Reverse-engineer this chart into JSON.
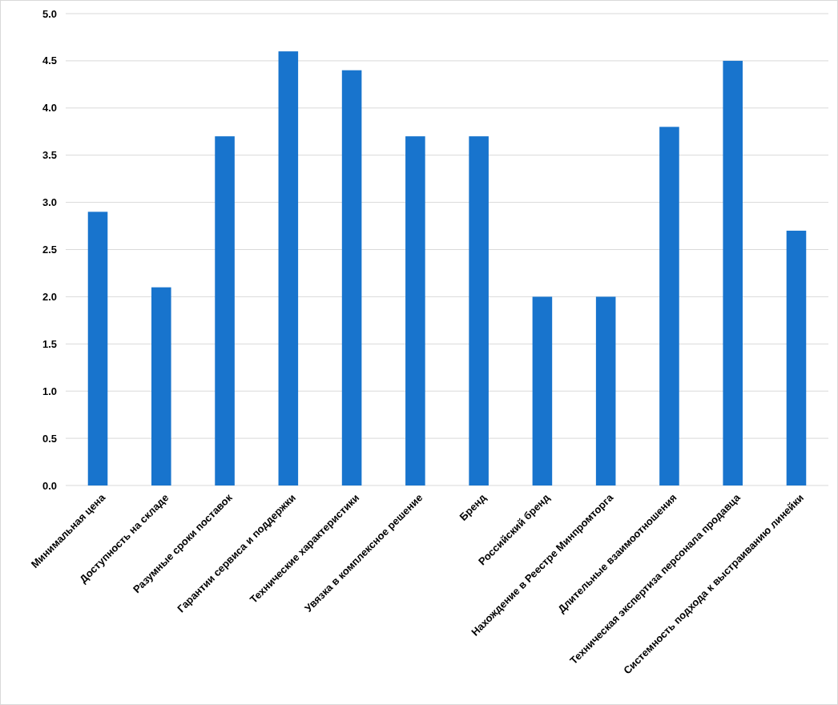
{
  "chart_data": {
    "type": "bar",
    "categories": [
      "Минимальная цена",
      "Доступность на складе",
      "Разумные сроки поставок",
      "Гарантии сервиса и поддержки",
      "Технические характеристики",
      "Увязка в комплексное решение",
      "Бренд",
      "Российский бренд",
      "Нахождение в Реестре Минпромторга",
      "Длительные взаимоотношения",
      "Техническая экспертиза персонала продавца",
      "Системность подхода к выстраиванию линейки"
    ],
    "values": [
      2.9,
      2.1,
      3.7,
      4.6,
      4.4,
      3.7,
      3.7,
      2.0,
      2.0,
      3.8,
      4.5,
      2.7
    ],
    "color": "#1874cd",
    "ylim": [
      0,
      5
    ],
    "yticks": [
      {
        "value": 0,
        "label": "0.0"
      },
      {
        "value": 0.5,
        "label": "0.5"
      },
      {
        "value": 1,
        "label": "1.0"
      },
      {
        "value": 1.5,
        "label": "1.5"
      },
      {
        "value": 2,
        "label": "2.0"
      },
      {
        "value": 2.5,
        "label": "2.5"
      },
      {
        "value": 3,
        "label": "3.0"
      },
      {
        "value": 3.5,
        "label": "3.5"
      },
      {
        "value": 4,
        "label": "4.0"
      },
      {
        "value": 4.5,
        "label": "4.5"
      },
      {
        "value": 5,
        "label": "5.0"
      }
    ],
    "grid": "y"
  }
}
